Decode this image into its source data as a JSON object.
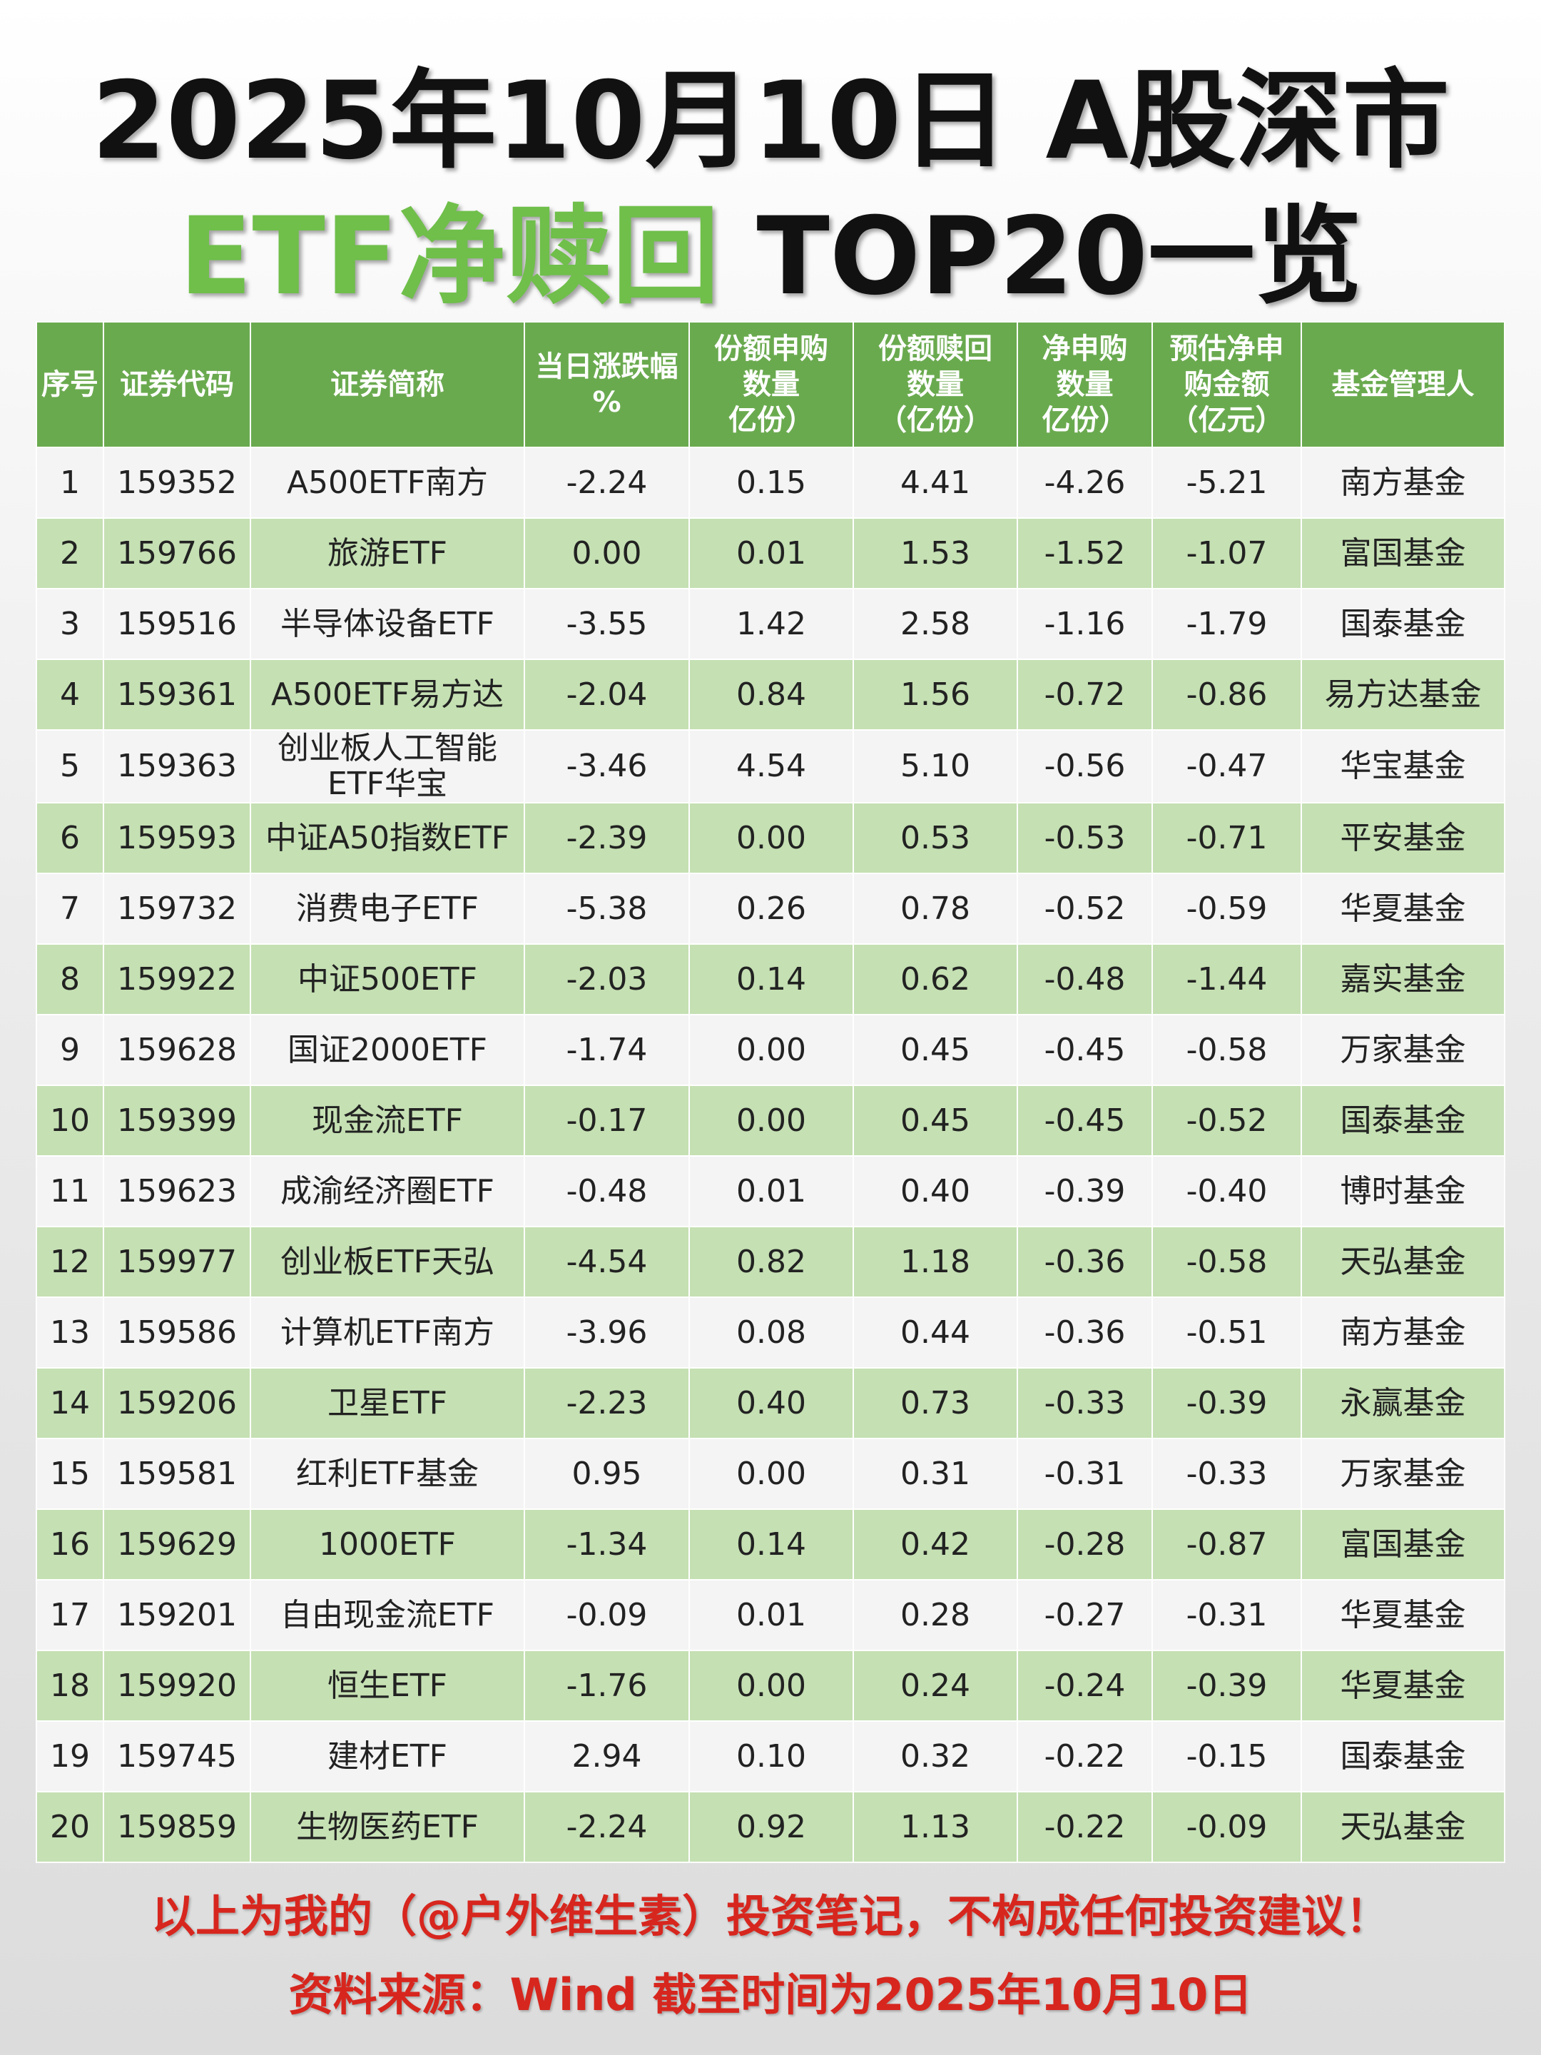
{
  "header": {
    "title_line1": "2025年10月10日 A股深市",
    "title_green": "ETF净赎回",
    "title_rest": " TOP20一览"
  },
  "table": {
    "columns": [
      "序号",
      "证券代码",
      "证券简称",
      "当日涨跌幅\n%",
      "份额申购\n数量\n亿份）",
      "份额赎回\n数量\n（亿份）",
      "净申购\n数量\n亿份）",
      "预估净申\n购金额\n（亿元）",
      "基金管理人"
    ],
    "rows": [
      [
        "1",
        "159352",
        "A500ETF南方",
        "-2.24",
        "0.15",
        "4.41",
        "-4.26",
        "-5.21",
        "南方基金"
      ],
      [
        "2",
        "159766",
        "旅游ETF",
        "0.00",
        "0.01",
        "1.53",
        "-1.52",
        "-1.07",
        "富国基金"
      ],
      [
        "3",
        "159516",
        "半导体设备ETF",
        "-3.55",
        "1.42",
        "2.58",
        "-1.16",
        "-1.79",
        "国泰基金"
      ],
      [
        "4",
        "159361",
        "A500ETF易方达",
        "-2.04",
        "0.84",
        "1.56",
        "-0.72",
        "-0.86",
        "易方达基金"
      ],
      [
        "5",
        "159363",
        "创业板人工智能ETF华宝",
        "-3.46",
        "4.54",
        "5.10",
        "-0.56",
        "-0.47",
        "华宝基金"
      ],
      [
        "6",
        "159593",
        "中证A50指数ETF",
        "-2.39",
        "0.00",
        "0.53",
        "-0.53",
        "-0.71",
        "平安基金"
      ],
      [
        "7",
        "159732",
        "消费电子ETF",
        "-5.38",
        "0.26",
        "0.78",
        "-0.52",
        "-0.59",
        "华夏基金"
      ],
      [
        "8",
        "159922",
        "中证500ETF",
        "-2.03",
        "0.14",
        "0.62",
        "-0.48",
        "-1.44",
        "嘉实基金"
      ],
      [
        "9",
        "159628",
        "国证2000ETF",
        "-1.74",
        "0.00",
        "0.45",
        "-0.45",
        "-0.58",
        "万家基金"
      ],
      [
        "10",
        "159399",
        "现金流ETF",
        "-0.17",
        "0.00",
        "0.45",
        "-0.45",
        "-0.52",
        "国泰基金"
      ],
      [
        "11",
        "159623",
        "成渝经济圈ETF",
        "-0.48",
        "0.01",
        "0.40",
        "-0.39",
        "-0.40",
        "博时基金"
      ],
      [
        "12",
        "159977",
        "创业板ETF天弘",
        "-4.54",
        "0.82",
        "1.18",
        "-0.36",
        "-0.58",
        "天弘基金"
      ],
      [
        "13",
        "159586",
        "计算机ETF南方",
        "-3.96",
        "0.08",
        "0.44",
        "-0.36",
        "-0.51",
        "南方基金"
      ],
      [
        "14",
        "159206",
        "卫星ETF",
        "-2.23",
        "0.40",
        "0.73",
        "-0.33",
        "-0.39",
        "永赢基金"
      ],
      [
        "15",
        "159581",
        "红利ETF基金",
        "0.95",
        "0.00",
        "0.31",
        "-0.31",
        "-0.33",
        "万家基金"
      ],
      [
        "16",
        "159629",
        "1000ETF",
        "-1.34",
        "0.14",
        "0.42",
        "-0.28",
        "-0.87",
        "富国基金"
      ],
      [
        "17",
        "159201",
        "自由现金流ETF",
        "-0.09",
        "0.01",
        "0.28",
        "-0.27",
        "-0.31",
        "华夏基金"
      ],
      [
        "18",
        "159920",
        "恒生ETF",
        "-1.76",
        "0.00",
        "0.24",
        "-0.24",
        "-0.39",
        "华夏基金"
      ],
      [
        "19",
        "159745",
        "建材ETF",
        "2.94",
        "0.10",
        "0.32",
        "-0.22",
        "-0.15",
        "国泰基金"
      ],
      [
        "20",
        "159859",
        "生物医药ETF",
        "-2.24",
        "0.92",
        "1.13",
        "-0.22",
        "-0.09",
        "天弘基金"
      ]
    ]
  },
  "footer": {
    "line1": "以上为我的（@户外维生素）投资笔记，不构成任何投资建议！",
    "line2": "资料来源：Wind 截至时间为2025年10月10日"
  }
}
